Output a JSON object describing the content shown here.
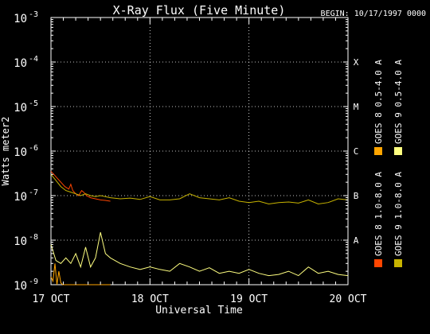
{
  "chart_data": {
    "type": "line",
    "title": "X-Ray Flux (Five Minute)",
    "begin_label": "BEGIN: 10/17/1997 0000",
    "xlabel": "Universal Time",
    "ylabel": "Watts meter2",
    "yscale": "log",
    "ylim": [
      1e-09,
      0.001
    ],
    "xlim": [
      0,
      3
    ],
    "x_unit": "days since 17 OCT 1997 00:00",
    "x_ticks": [
      {
        "x": 0,
        "label": "17 OCT"
      },
      {
        "x": 1,
        "label": "18 OCT"
      },
      {
        "x": 2,
        "label": "19 OCT"
      },
      {
        "x": 3,
        "label": "20 OCT"
      }
    ],
    "y_ticks": [
      {
        "exp": -3,
        "base": "10",
        "sup": "-3"
      },
      {
        "exp": -4,
        "base": "10",
        "sup": "-4"
      },
      {
        "exp": -5,
        "base": "10",
        "sup": "-5"
      },
      {
        "exp": -6,
        "base": "10",
        "sup": "-6"
      },
      {
        "exp": -7,
        "base": "10",
        "sup": "-7"
      },
      {
        "exp": -8,
        "base": "10",
        "sup": "-8"
      },
      {
        "exp": -9,
        "base": "10",
        "sup": "-9"
      }
    ],
    "flare_classes": [
      {
        "label": "X",
        "exp": -4
      },
      {
        "label": "M",
        "exp": -5
      },
      {
        "label": "C",
        "exp": -6
      },
      {
        "label": "B",
        "exp": -7
      },
      {
        "label": "A",
        "exp": -8
      }
    ],
    "grid": {
      "horizontal_dotted": true,
      "vertical_dotted_at_days": [
        1,
        2
      ]
    },
    "legend_position": "right-vertical",
    "series": [
      {
        "name": "GOES 8 1.0-8.0 A",
        "color": "#ff4500",
        "x": [
          0.0,
          0.03,
          0.06,
          0.1,
          0.14,
          0.18,
          0.2,
          0.22,
          0.25,
          0.28,
          0.31,
          0.33,
          0.36,
          0.4,
          0.45,
          0.5,
          0.55,
          0.6
        ],
        "y": [
          3.5e-07,
          3e-07,
          2.5e-07,
          2e-07,
          1.6e-07,
          1.4e-07,
          1.8e-07,
          1.3e-07,
          1.1e-07,
          1e-07,
          1.3e-07,
          1.2e-07,
          1e-07,
          9e-08,
          8.5e-08,
          8e-08,
          7.8e-08,
          7.5e-08
        ]
      },
      {
        "name": "GOES 8 0.5-4.0 A",
        "color": "#ffa500",
        "x": [
          0.0,
          0.02,
          0.04,
          0.06,
          0.08,
          0.1,
          0.12,
          0.14,
          0.16,
          0.18,
          0.2,
          0.22,
          0.25,
          0.3,
          0.33,
          0.36,
          0.4,
          0.45,
          0.5,
          0.55,
          0.6
        ],
        "y": [
          1.5e-09,
          1.2e-09,
          3e-09,
          1e-09,
          2e-09,
          1.1e-09,
          1e-09,
          1e-09,
          1e-09,
          1e-09,
          1e-09,
          1e-09,
          1e-09,
          1e-09,
          1e-09,
          1e-09,
          1e-09,
          1e-09,
          1e-09,
          1e-09,
          1e-09
        ]
      },
      {
        "name": "GOES 9 1.0-8.0 A",
        "color": "#c8b400",
        "x": [
          0.0,
          0.05,
          0.1,
          0.15,
          0.2,
          0.25,
          0.3,
          0.35,
          0.4,
          0.45,
          0.5,
          0.6,
          0.7,
          0.8,
          0.9,
          1.0,
          1.1,
          1.2,
          1.3,
          1.4,
          1.5,
          1.6,
          1.7,
          1.8,
          1.9,
          2.0,
          2.1,
          2.2,
          2.3,
          2.4,
          2.5,
          2.6,
          2.7,
          2.8,
          2.9,
          3.0
        ],
        "y": [
          3e-07,
          2.2e-07,
          1.6e-07,
          1.3e-07,
          1.2e-07,
          1.1e-07,
          1e-07,
          1.1e-07,
          1e-07,
          9.5e-08,
          1e-07,
          9e-08,
          8.5e-08,
          8.8e-08,
          8.2e-08,
          9.5e-08,
          8e-08,
          8e-08,
          8.5e-08,
          1.1e-07,
          9e-08,
          8.5e-08,
          8e-08,
          9e-08,
          7.5e-08,
          7e-08,
          7.5e-08,
          6.5e-08,
          7e-08,
          7.2e-08,
          6.8e-08,
          8e-08,
          6.5e-08,
          7e-08,
          8.5e-08,
          8e-08
        ]
      },
      {
        "name": "GOES 9 0.5-4.0 A",
        "color": "#ffff80",
        "x": [
          0.0,
          0.05,
          0.1,
          0.15,
          0.2,
          0.25,
          0.3,
          0.35,
          0.4,
          0.45,
          0.5,
          0.55,
          0.6,
          0.7,
          0.8,
          0.9,
          1.0,
          1.1,
          1.2,
          1.3,
          1.4,
          1.5,
          1.6,
          1.7,
          1.8,
          1.9,
          2.0,
          2.1,
          2.2,
          2.3,
          2.4,
          2.5,
          2.6,
          2.7,
          2.8,
          2.9,
          3.0
        ],
        "y": [
          8e-09,
          3.5e-09,
          3e-09,
          4e-09,
          3e-09,
          5e-09,
          2.5e-09,
          7e-09,
          2.5e-09,
          4e-09,
          1.5e-08,
          5e-09,
          4e-09,
          3e-09,
          2.5e-09,
          2.2e-09,
          2.5e-09,
          2.2e-09,
          2e-09,
          3e-09,
          2.5e-09,
          2e-09,
          2.4e-09,
          1.8e-09,
          2e-09,
          1.8e-09,
          2.2e-09,
          1.8e-09,
          1.6e-09,
          1.7e-09,
          2e-09,
          1.6e-09,
          2.5e-09,
          1.8e-09,
          2e-09,
          1.7e-09,
          1.6e-09
        ]
      }
    ]
  }
}
